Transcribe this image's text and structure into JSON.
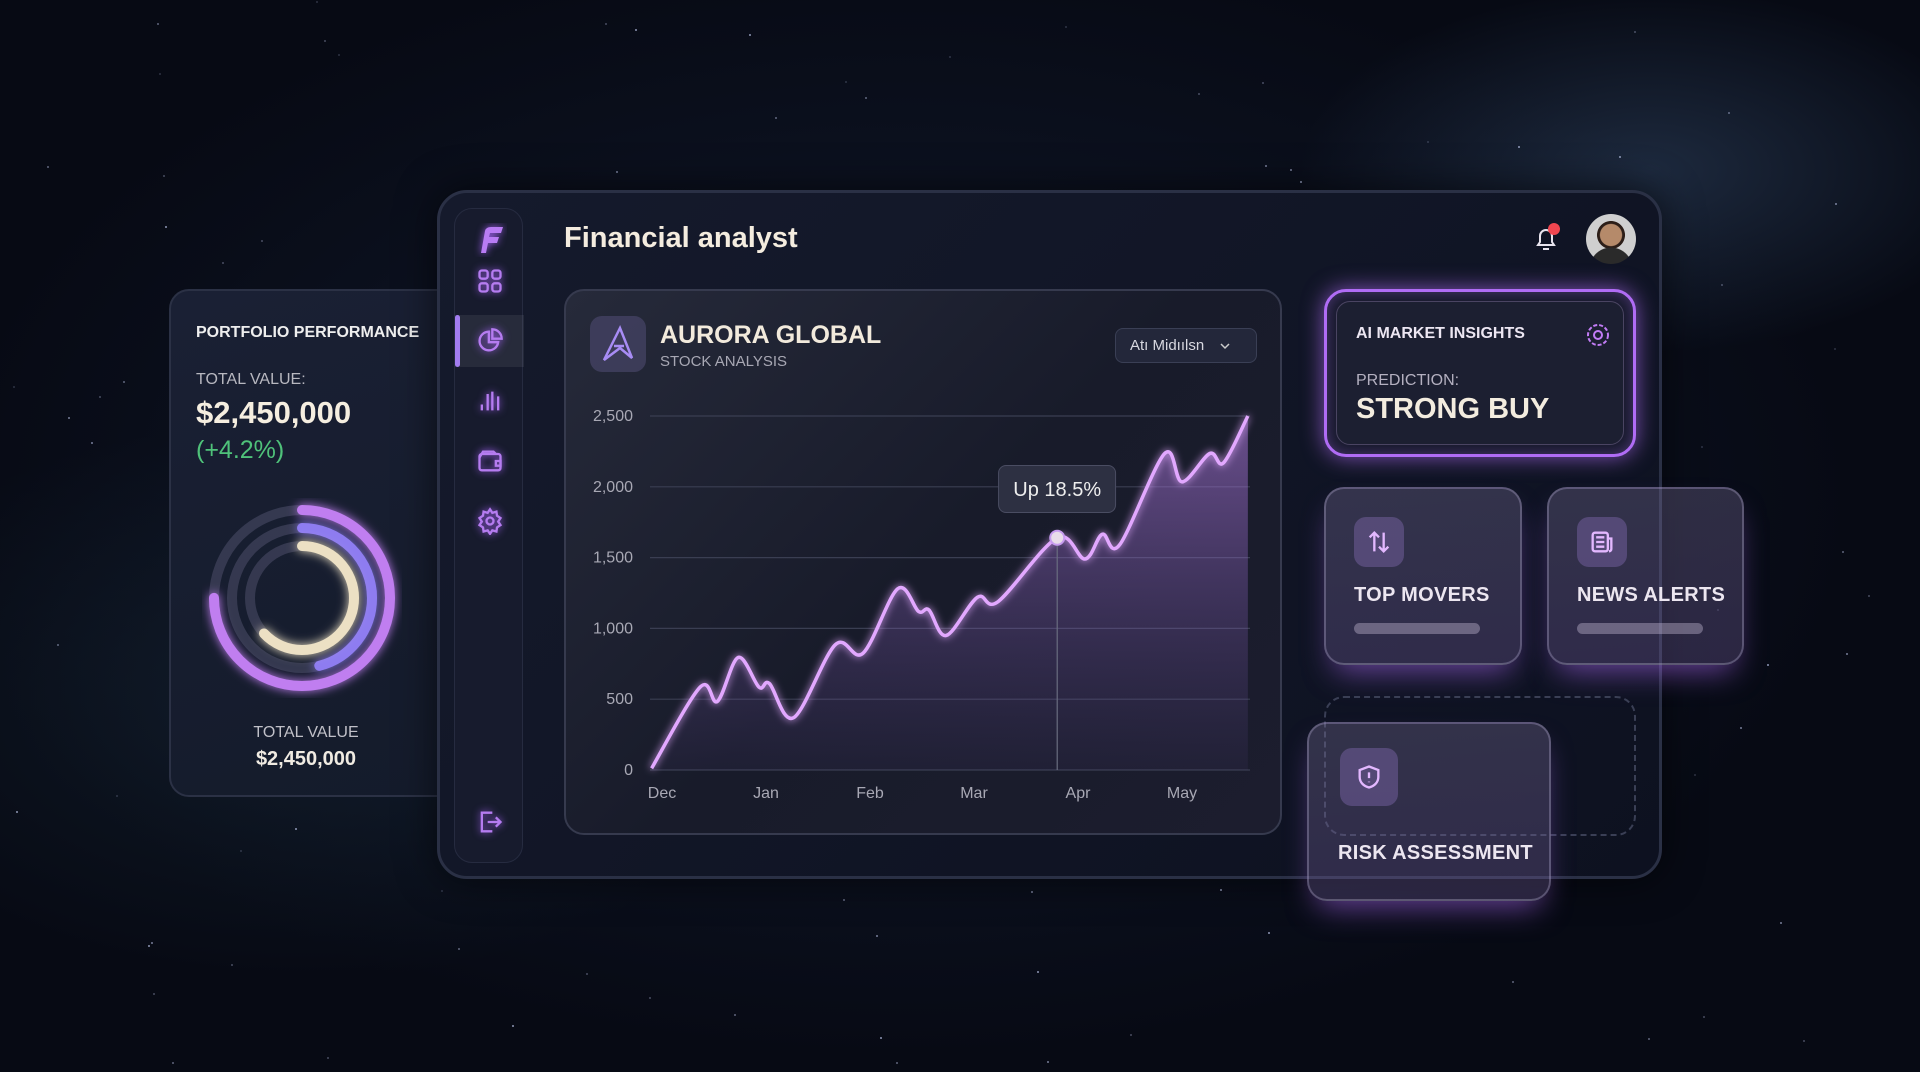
{
  "header": {
    "title": "Financial analyst",
    "notification_badge": true
  },
  "sidebar": {
    "items": [
      {
        "icon": "grid-icon",
        "label": "Dashboard"
      },
      {
        "icon": "pie-chart-icon",
        "label": "Portfolio",
        "active": true
      },
      {
        "icon": "bar-chart-icon",
        "label": "Analytics"
      },
      {
        "icon": "wallet-icon",
        "label": "Wallet"
      },
      {
        "icon": "gear-icon",
        "label": "Settings"
      }
    ],
    "logout_icon": "logout-icon"
  },
  "portfolio": {
    "heading": "PORTFOLIO PERFORMANCE",
    "total_label": "TOTAL VALUE:",
    "total_value": "$2,450,000",
    "change": "(+4.2%)",
    "footer_label": "TOTAL VALUE",
    "footer_value": "$2,450,000",
    "rings": [
      {
        "percent": 75,
        "color": "#c07ef0"
      },
      {
        "percent": 46,
        "color": "#8e7cf0"
      },
      {
        "percent": 63,
        "color": "#ece0c4"
      }
    ],
    "change_color": "#4fc27a"
  },
  "stock": {
    "name": "AURORA GLOBAL",
    "subtitle": "STOCK ANALYSIS",
    "dropdown": "Atı Midıılsn",
    "tooltip": "Up 18.5%"
  },
  "chart_data": {
    "type": "area",
    "ylim": [
      0,
      2500
    ],
    "yticks": [
      0,
      500,
      1000,
      1500,
      2000,
      2500
    ],
    "ytick_labels": [
      "0",
      "500",
      "1,000",
      "1,500",
      "2,000",
      "2,500"
    ],
    "categories": [
      "Dec",
      "Jan",
      "Feb",
      "Mar",
      "Apr",
      "May"
    ],
    "grid": true,
    "line_color": "#e2a8ff",
    "x": [
      "Nov 28",
      "Dec 12",
      "Dec 17",
      "Dec 23",
      "Dec 29",
      "Jan 2",
      "Jan 9",
      "Jan 21",
      "Jan 29",
      "Feb 9",
      "Feb 15",
      "Feb 18",
      "Feb 23",
      "Mar 2",
      "Mar 8",
      "Mar 25",
      "Apr 3",
      "Apr 8",
      "Apr 13",
      "Apr 26",
      "May 1",
      "May 9",
      "May 13",
      "May 20"
    ],
    "values": [
      12,
      585,
      485,
      795,
      585,
      610,
      370,
      885,
      825,
      1280,
      1120,
      1130,
      950,
      1220,
      1190,
      1640,
      1490,
      1665,
      1590,
      2235,
      2035,
      2235,
      2170,
      2500
    ],
    "highlight": {
      "x": "Mar 25",
      "value": 1640,
      "label": "Up 18.5%"
    }
  },
  "insights": {
    "title": "AI MARKET INSIGHTS",
    "prediction_label": "PREDICTION:",
    "prediction": "STRONG BUY",
    "accent": "#b06cf5"
  },
  "tiles": [
    {
      "label": "TOP MOVERS",
      "icon": "arrows-up-down-icon"
    },
    {
      "label": "NEWS ALERTS",
      "icon": "newspaper-icon"
    },
    {
      "label": "RISK ASSESSMENT",
      "icon": "shield-alert-icon"
    }
  ]
}
